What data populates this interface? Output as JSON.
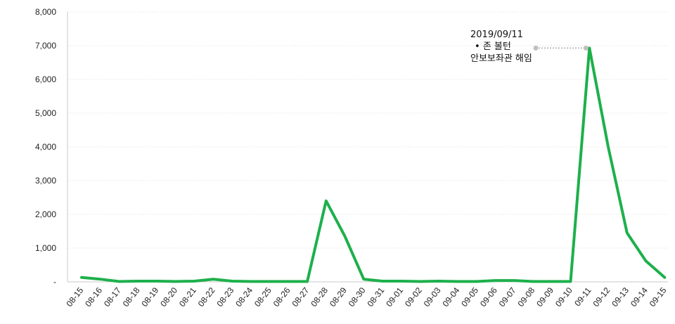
{
  "chart_data": {
    "type": "line",
    "categories": [
      "08-15",
      "08-16",
      "08-17",
      "08-18",
      "08-19",
      "08-20",
      "08-21",
      "08-22",
      "08-23",
      "08-24",
      "08-25",
      "08-26",
      "08-27",
      "08-28",
      "08-29",
      "08-30",
      "08-31",
      "09-01",
      "09-02",
      "09-03",
      "09-04",
      "09-05",
      "09-06",
      "09-07",
      "09-08",
      "09-09",
      "09-10",
      "09-11",
      "09-12",
      "09-13",
      "09-14",
      "09-15"
    ],
    "series": [
      {
        "values": [
          130,
          80,
          10,
          20,
          20,
          10,
          20,
          80,
          20,
          10,
          10,
          10,
          10,
          2400,
          1350,
          80,
          20,
          20,
          10,
          20,
          10,
          10,
          40,
          40,
          10,
          10,
          10,
          6930,
          4000,
          1450,
          620,
          130
        ]
      }
    ],
    "y_ticks": [
      "-",
      "1,000",
      "2,000",
      "3,000",
      "4,000",
      "5,000",
      "6,000",
      "7,000",
      "8,000"
    ],
    "ylim": [
      0,
      8000
    ],
    "grid": true,
    "line_color": "#1db04b",
    "annotation": {
      "category": "09-11",
      "value": 6930,
      "date": "2019/09/11",
      "bullet": "•",
      "line1": "존 볼턴",
      "line2": "안보보좌관 해임",
      "connector_color": "#bfbfbf"
    }
  }
}
